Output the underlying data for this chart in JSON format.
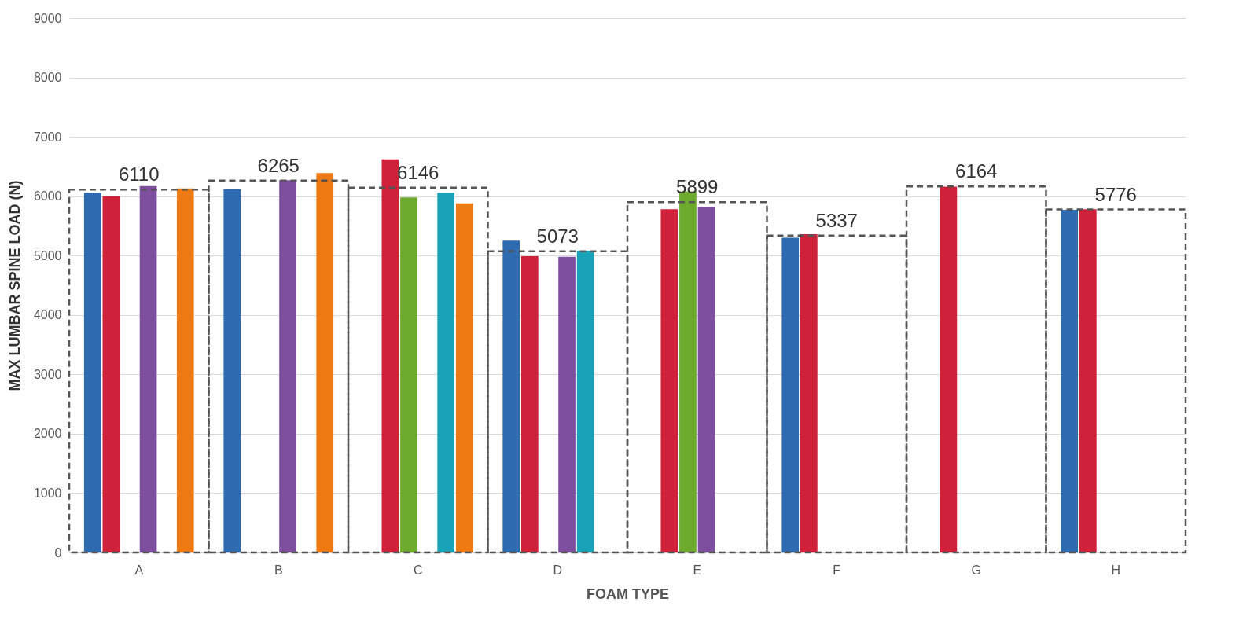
{
  "chart_data": {
    "type": "bar",
    "xlabel": "FOAM TYPE",
    "ylabel": "MAX LUMBAR SPINE LOAD (N)",
    "categories": [
      "A",
      "B",
      "C",
      "D",
      "E",
      "F",
      "G",
      "H"
    ],
    "series": [
      {
        "color": "#2e6bb0",
        "values": [
          6060,
          6120,
          null,
          5250,
          null,
          5300,
          null,
          5770
        ]
      },
      {
        "color": "#d0213a",
        "values": [
          6000,
          null,
          6620,
          4990,
          5780,
          5360,
          6160,
          5780
        ]
      },
      {
        "color": "#6eaa2e",
        "values": [
          null,
          null,
          5980,
          null,
          6080,
          null,
          null,
          null
        ]
      },
      {
        "color": "#7e4f9e",
        "values": [
          6170,
          6270,
          null,
          4980,
          5820,
          null,
          null,
          null
        ]
      },
      {
        "color": "#1aa3b8",
        "values": [
          null,
          null,
          6060,
          5080,
          null,
          null,
          null,
          null
        ]
      },
      {
        "color": "#f07a12",
        "values": [
          6130,
          6390,
          5880,
          null,
          null,
          null,
          null,
          null
        ]
      },
      {
        "type": "bar",
        "color": "#555555",
        "line_style": "dashed",
        "values": [
          6110,
          6265,
          6146,
          5073,
          5899,
          5337,
          6164,
          5776
        ],
        "value_labels": [
          "6110",
          "6265",
          "6146",
          "5073",
          "5899",
          "5337",
          "6164",
          "5776"
        ]
      }
    ],
    "ylim": [
      0,
      9000
    ],
    "yticks": [
      0,
      1000,
      2000,
      3000,
      4000,
      5000,
      6000,
      7000,
      8000,
      9000
    ],
    "grid": "y"
  }
}
